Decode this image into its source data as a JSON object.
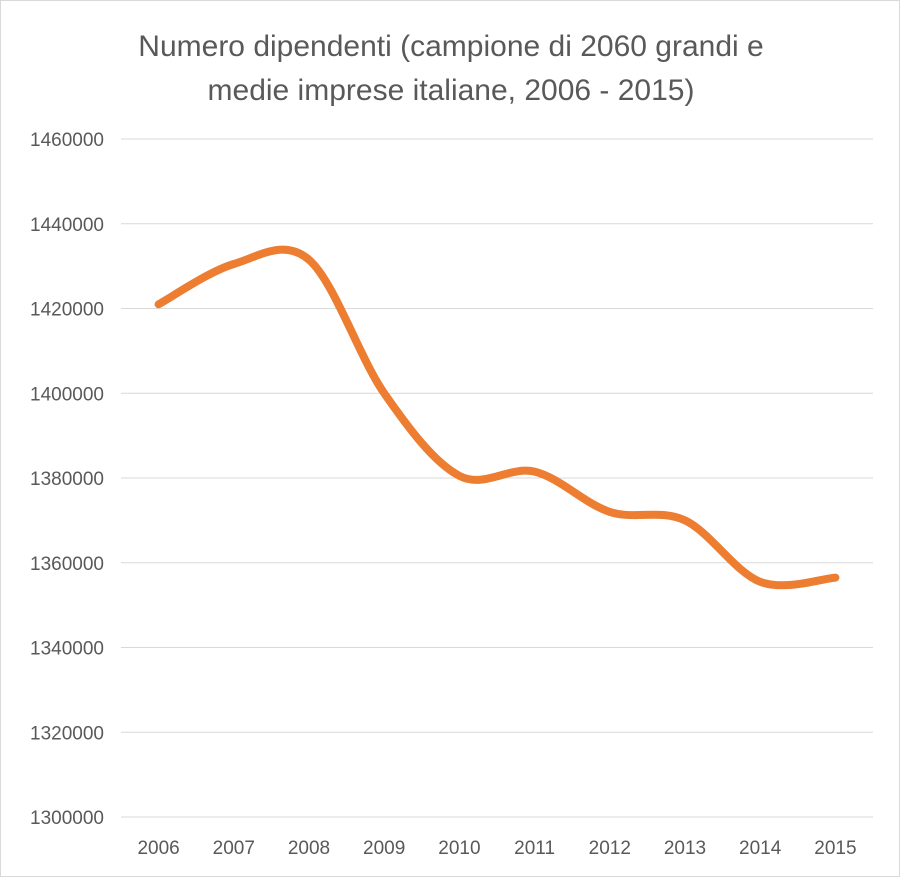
{
  "chart_data": {
    "type": "line",
    "title_line1": "Numero dipendenti (campione di 2060 grandi e",
    "title_line2": "medie imprese italiane, 2006 - 2015)",
    "xlabel": "",
    "ylabel": "",
    "categories": [
      "2006",
      "2007",
      "2008",
      "2009",
      "2010",
      "2011",
      "2012",
      "2013",
      "2014",
      "2015"
    ],
    "series": [
      {
        "values": [
          1421000,
          1430500,
          1431500,
          1400000,
          1380500,
          1381500,
          1372000,
          1370000,
          1355500,
          1356500
        ]
      }
    ],
    "ylim": [
      1300000,
      1460000
    ],
    "yticks": [
      "1300000",
      "1320000",
      "1340000",
      "1360000",
      "1380000",
      "1400000",
      "1420000",
      "1440000",
      "1460000"
    ],
    "ytick_values": [
      1300000,
      1320000,
      1340000,
      1360000,
      1380000,
      1400000,
      1420000,
      1440000,
      1460000
    ],
    "grid": true,
    "line_color": "#ED7D31",
    "smooth": true
  }
}
